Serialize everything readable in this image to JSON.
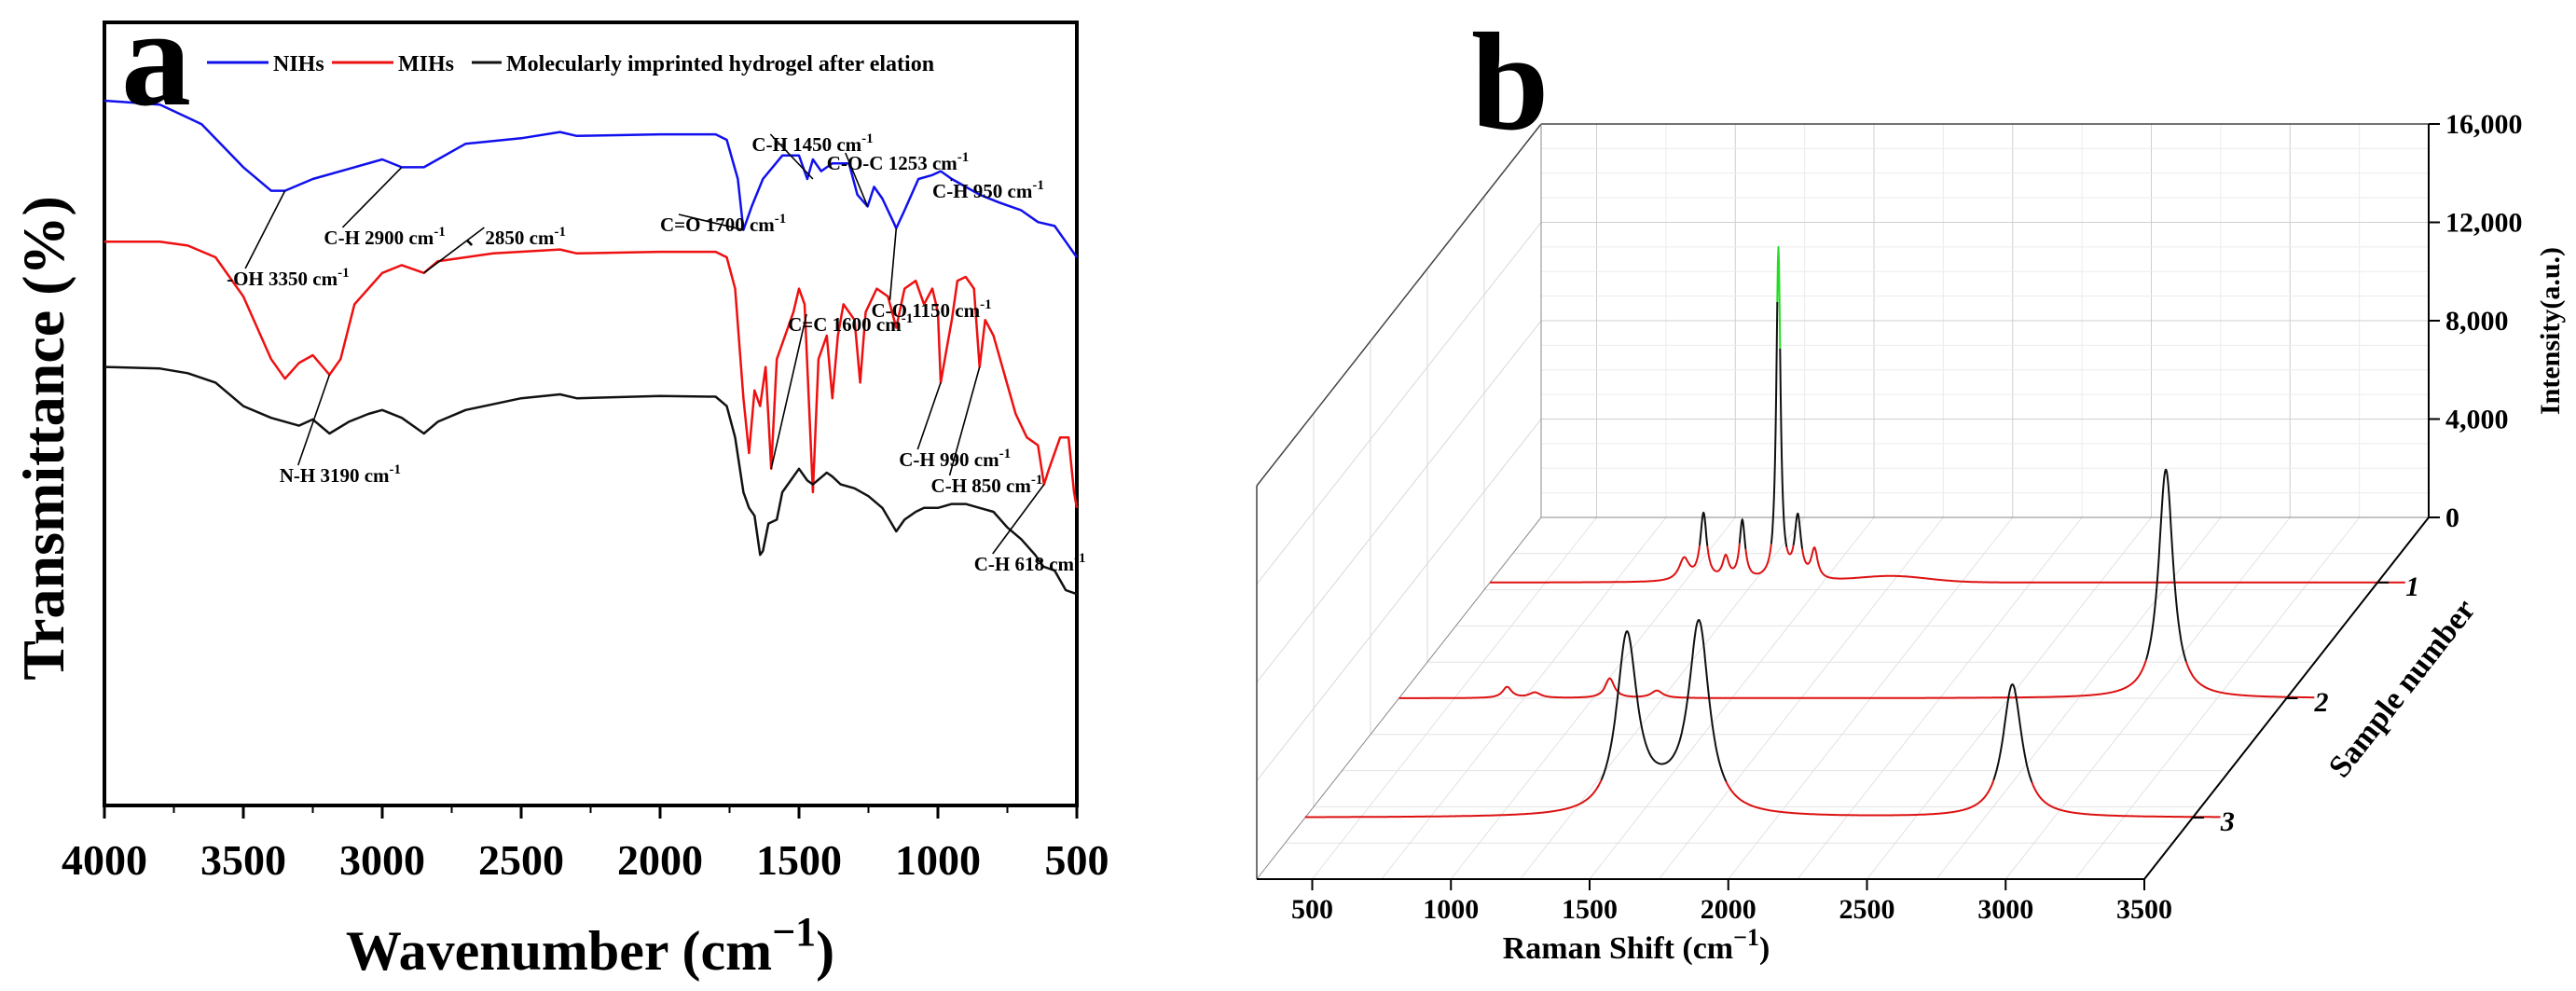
{
  "chart_data": [
    {
      "panel": "a",
      "type": "line",
      "title": "",
      "xlabel_main": "Wavenumber (cm",
      "xlabel_sup": "−1",
      "xlabel_close": ")",
      "ylabel": "Transmittance (%)",
      "xlim": [
        4000,
        500
      ],
      "x_ticks": [
        4000,
        3500,
        3000,
        2500,
        2000,
        1500,
        1000,
        500
      ],
      "y_ticks_shown": false,
      "grid": false,
      "legend_position": "top",
      "series": [
        {
          "name": "NIHs",
          "color": "#1010ee",
          "points": [
            [
              4000,
              0.9
            ],
            [
              3800,
              0.895
            ],
            [
              3650,
              0.87
            ],
            [
              3500,
              0.815
            ],
            [
              3400,
              0.785
            ],
            [
              3350,
              0.785
            ],
            [
              3250,
              0.8
            ],
            [
              3100,
              0.815
            ],
            [
              3000,
              0.825
            ],
            [
              2930,
              0.815
            ],
            [
              2850,
              0.815
            ],
            [
              2700,
              0.845
            ],
            [
              2500,
              0.852
            ],
            [
              2360,
              0.86
            ],
            [
              2300,
              0.855
            ],
            [
              2000,
              0.857
            ],
            [
              1800,
              0.857
            ],
            [
              1760,
              0.85
            ],
            [
              1720,
              0.8
            ],
            [
              1700,
              0.735
            ],
            [
              1670,
              0.765
            ],
            [
              1630,
              0.8
            ],
            [
              1560,
              0.83
            ],
            [
              1500,
              0.83
            ],
            [
              1470,
              0.8
            ],
            [
              1450,
              0.825
            ],
            [
              1420,
              0.81
            ],
            [
              1380,
              0.82
            ],
            [
              1320,
              0.82
            ],
            [
              1290,
              0.78
            ],
            [
              1253,
              0.765
            ],
            [
              1230,
              0.79
            ],
            [
              1200,
              0.775
            ],
            [
              1160,
              0.745
            ],
            [
              1150,
              0.737
            ],
            [
              1120,
              0.76
            ],
            [
              1070,
              0.8
            ],
            [
              1020,
              0.805
            ],
            [
              990,
              0.81
            ],
            [
              950,
              0.8
            ],
            [
              900,
              0.79
            ],
            [
              850,
              0.78
            ],
            [
              780,
              0.77
            ],
            [
              700,
              0.76
            ],
            [
              640,
              0.745
            ],
            [
              580,
              0.74
            ],
            [
              540,
              0.72
            ],
            [
              500,
              0.7
            ]
          ]
        },
        {
          "name": "MIHs",
          "color": "#ee1010",
          "points": [
            [
              4000,
              0.72
            ],
            [
              3800,
              0.72
            ],
            [
              3700,
              0.715
            ],
            [
              3600,
              0.7
            ],
            [
              3500,
              0.65
            ],
            [
              3400,
              0.57
            ],
            [
              3350,
              0.545
            ],
            [
              3300,
              0.565
            ],
            [
              3250,
              0.575
            ],
            [
              3190,
              0.55
            ],
            [
              3150,
              0.57
            ],
            [
              3100,
              0.64
            ],
            [
              3000,
              0.68
            ],
            [
              2930,
              0.69
            ],
            [
              2850,
              0.68
            ],
            [
              2800,
              0.695
            ],
            [
              2600,
              0.705
            ],
            [
              2360,
              0.71
            ],
            [
              2300,
              0.705
            ],
            [
              2000,
              0.707
            ],
            [
              1800,
              0.707
            ],
            [
              1760,
              0.7
            ],
            [
              1730,
              0.66
            ],
            [
              1700,
              0.52
            ],
            [
              1680,
              0.45
            ],
            [
              1660,
              0.53
            ],
            [
              1640,
              0.51
            ],
            [
              1620,
              0.56
            ],
            [
              1600,
              0.43
            ],
            [
              1580,
              0.57
            ],
            [
              1550,
              0.6
            ],
            [
              1520,
              0.63
            ],
            [
              1500,
              0.66
            ],
            [
              1480,
              0.64
            ],
            [
              1450,
              0.4
            ],
            [
              1430,
              0.57
            ],
            [
              1400,
              0.6
            ],
            [
              1380,
              0.52
            ],
            [
              1360,
              0.6
            ],
            [
              1340,
              0.64
            ],
            [
              1300,
              0.62
            ],
            [
              1280,
              0.54
            ],
            [
              1260,
              0.63
            ],
            [
              1220,
              0.66
            ],
            [
              1180,
              0.65
            ],
            [
              1150,
              0.61
            ],
            [
              1120,
              0.66
            ],
            [
              1080,
              0.67
            ],
            [
              1050,
              0.64
            ],
            [
              1020,
              0.66
            ],
            [
              1000,
              0.63
            ],
            [
              990,
              0.54
            ],
            [
              970,
              0.58
            ],
            [
              950,
              0.62
            ],
            [
              930,
              0.67
            ],
            [
              900,
              0.675
            ],
            [
              870,
              0.66
            ],
            [
              850,
              0.56
            ],
            [
              830,
              0.62
            ],
            [
              800,
              0.6
            ],
            [
              760,
              0.55
            ],
            [
              720,
              0.5
            ],
            [
              680,
              0.47
            ],
            [
              640,
              0.46
            ],
            [
              618,
              0.41
            ],
            [
              600,
              0.43
            ],
            [
              560,
              0.47
            ],
            [
              530,
              0.47
            ],
            [
              510,
              0.4
            ],
            [
              500,
              0.38
            ]
          ]
        },
        {
          "name": "Molecularly imprinted hydrogel after elation",
          "color": "#111111",
          "points": [
            [
              4000,
              0.56
            ],
            [
              3800,
              0.558
            ],
            [
              3700,
              0.552
            ],
            [
              3600,
              0.54
            ],
            [
              3500,
              0.51
            ],
            [
              3400,
              0.495
            ],
            [
              3300,
              0.485
            ],
            [
              3250,
              0.493
            ],
            [
              3190,
              0.475
            ],
            [
              3120,
              0.49
            ],
            [
              3050,
              0.5
            ],
            [
              3000,
              0.505
            ],
            [
              2930,
              0.495
            ],
            [
              2850,
              0.475
            ],
            [
              2800,
              0.49
            ],
            [
              2700,
              0.505
            ],
            [
              2500,
              0.52
            ],
            [
              2360,
              0.525
            ],
            [
              2300,
              0.52
            ],
            [
              2000,
              0.523
            ],
            [
              1800,
              0.522
            ],
            [
              1760,
              0.51
            ],
            [
              1730,
              0.47
            ],
            [
              1700,
              0.4
            ],
            [
              1680,
              0.38
            ],
            [
              1660,
              0.37
            ],
            [
              1640,
              0.32
            ],
            [
              1630,
              0.325
            ],
            [
              1610,
              0.36
            ],
            [
              1580,
              0.365
            ],
            [
              1560,
              0.4
            ],
            [
              1500,
              0.43
            ],
            [
              1470,
              0.415
            ],
            [
              1450,
              0.41
            ],
            [
              1400,
              0.425
            ],
            [
              1380,
              0.42
            ],
            [
              1350,
              0.41
            ],
            [
              1300,
              0.405
            ],
            [
              1250,
              0.395
            ],
            [
              1200,
              0.38
            ],
            [
              1150,
              0.35
            ],
            [
              1120,
              0.365
            ],
            [
              1080,
              0.375
            ],
            [
              1050,
              0.38
            ],
            [
              1000,
              0.38
            ],
            [
              950,
              0.385
            ],
            [
              900,
              0.385
            ],
            [
              850,
              0.38
            ],
            [
              800,
              0.375
            ],
            [
              750,
              0.355
            ],
            [
              700,
              0.34
            ],
            [
              650,
              0.32
            ],
            [
              620,
              0.305
            ],
            [
              580,
              0.3
            ],
            [
              540,
              0.275
            ],
            [
              500,
              0.27
            ]
          ]
        }
      ],
      "legend": [
        "NIHs",
        "MIHs",
        "Molecularly imprinted hydrogel after elation"
      ],
      "annotations": [
        {
          "text": "-OH 3350 cm",
          "sup": "-1",
          "x": 3350,
          "y": 0.785
        },
        {
          "text": "C-H 2900 cm",
          "sup": "-1",
          "x": 2930,
          "y": 0.815
        },
        {
          "text": "、2850 cm",
          "sup": "-1",
          "x": 2850,
          "y": 0.68
        },
        {
          "text": "N-H 3190 cm",
          "sup": "-1",
          "x": 3190,
          "y": 0.55
        },
        {
          "text": "C=O 1700 cm",
          "sup": "-1",
          "x": 1700,
          "y": 0.735
        },
        {
          "text": "C=C 1600 cm",
          "sup": "-1",
          "x": 1600,
          "y": 0.43
        },
        {
          "text": "C-H 1450 cm",
          "sup": "-1",
          "x": 1450,
          "y": 0.8
        },
        {
          "text": "C-O-C 1253 cm",
          "sup": "-1",
          "x": 1253,
          "y": 0.765
        },
        {
          "text": "C-O 1150 cm",
          "sup": "-1",
          "x": 1150,
          "y": 0.737
        },
        {
          "text": "C-H 950 cm",
          "sup": "-1",
          "x": 950,
          "y": 0.8
        },
        {
          "text": "C-H 990 cm",
          "sup": "-1",
          "x": 990,
          "y": 0.54
        },
        {
          "text": "C-H 850 cm",
          "sup": "-1",
          "x": 850,
          "y": 0.56
        },
        {
          "text": "C-H 618 cm",
          "sup": "-1",
          "x": 618,
          "y": 0.41
        }
      ]
    },
    {
      "panel": "b",
      "type": "line",
      "subtype": "3d-waterfall",
      "title": "",
      "xlabel_main": "Raman Shift (cm",
      "xlabel_sup": "−1",
      "xlabel_close": ")",
      "ylabel": "Sample number",
      "zlabel": "Intensity(a.u.)",
      "xlim": [
        300,
        3500
      ],
      "x_ticks": [
        500,
        1000,
        1500,
        2000,
        2500,
        3000,
        3500
      ],
      "zlim": [
        0,
        16000
      ],
      "z_ticks": [
        "0",
        "4,000",
        "8,000",
        "12,000",
        "16,000"
      ],
      "y_ticks": [
        "1",
        "2",
        "3"
      ],
      "grid": true,
      "series": [
        {
          "name": "1",
          "color": "#dd1111",
          "peak_color": "#111111",
          "highlight_color": "#22dd22",
          "peaks": [
            [
              1000,
              900,
              22
            ],
            [
              1070,
              2700,
              14
            ],
            [
              1150,
              900,
              14
            ],
            [
              1210,
              2400,
              12
            ],
            [
              1340,
              13500,
              9
            ],
            [
              1410,
              2500,
              14
            ],
            [
              1470,
              1200,
              14
            ]
          ],
          "broad": [
            [
              1750,
              250,
              180
            ]
          ]
        },
        {
          "name": "2",
          "color": "#dd1111",
          "peak_color": "#111111",
          "peaks": [
            [
              690,
              450,
              20
            ],
            [
              790,
              220,
              25
            ],
            [
              1060,
              800,
              20
            ],
            [
              1230,
              300,
              25
            ],
            [
              3065,
              9300,
              32
            ]
          ],
          "broad": []
        },
        {
          "name": "3",
          "color": "#dd1111",
          "peak_color": "#111111",
          "peaks": [
            [
              1460,
              7200,
              45
            ],
            [
              1720,
              7600,
              45
            ],
            [
              2850,
              5400,
              42
            ]
          ],
          "broad": [
            [
              1600,
              600,
              120
            ]
          ]
        }
      ]
    }
  ]
}
